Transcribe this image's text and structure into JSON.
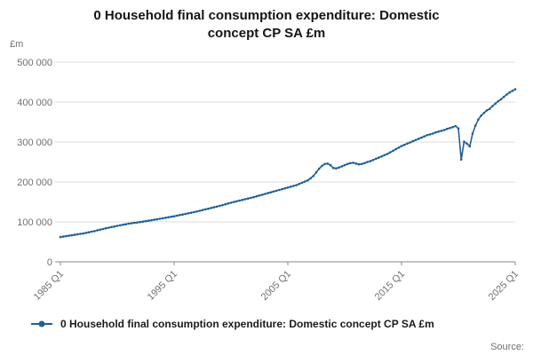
{
  "title": "0 Household final consumption expenditure: Domestic concept CP SA £m",
  "source_label": "Source:",
  "y_axis": {
    "unit_label": "£m",
    "tick_labels": [
      "0",
      "100 000",
      "200 000",
      "300 000",
      "400 000",
      "500 000"
    ],
    "min": 0,
    "max": 500000
  },
  "x_axis": {
    "tick_labels": [
      "1985 Q1",
      "1995 Q1",
      "2005 Q1",
      "2015 Q1",
      "2025 Q1"
    ],
    "tick_positions": [
      0,
      40,
      80,
      120,
      160
    ]
  },
  "legend": {
    "label": "0 Household final consumption expenditure: Domestic concept CP SA £m",
    "color": "#206095"
  },
  "chart_data": {
    "type": "line",
    "title": "0 Household final consumption expenditure: Domestic concept CP SA £m",
    "xlabel": "",
    "ylabel": "£m",
    "ylim": [
      0,
      500000
    ],
    "grid": true,
    "legend_position": "bottom",
    "x_start": "1985 Q1",
    "x_end": "2025 Q1",
    "frequency": "quarterly",
    "series": [
      {
        "name": "0 Household final consumption expenditure: Domestic concept CP SA £m",
        "color": "#206095",
        "marker": "circle",
        "values": [
          62000,
          63100,
          64300,
          65400,
          66500,
          67600,
          68800,
          69900,
          71000,
          72500,
          74000,
          75500,
          77000,
          78800,
          80500,
          82300,
          84000,
          85500,
          87000,
          88500,
          90000,
          91400,
          92800,
          94100,
          95500,
          96500,
          97500,
          98500,
          99500,
          100600,
          101700,
          102900,
          104000,
          105300,
          106500,
          107800,
          109000,
          110300,
          111500,
          112800,
          114000,
          115500,
          117000,
          118500,
          120000,
          121500,
          123000,
          124500,
          126000,
          127800,
          129500,
          131300,
          133000,
          134800,
          136500,
          138300,
          140000,
          142000,
          144000,
          146000,
          148000,
          149800,
          151500,
          153300,
          155000,
          156800,
          158500,
          160300,
          162000,
          164000,
          166000,
          168000,
          170000,
          172000,
          174000,
          176000,
          178000,
          180000,
          182000,
          184000,
          186000,
          188000,
          190000,
          192000,
          195000,
          198000,
          201000,
          204000,
          209000,
          215000,
          224000,
          233000,
          240000,
          245000,
          246000,
          242000,
          235000,
          234000,
          236000,
          239000,
          242000,
          245000,
          247000,
          248000,
          246000,
          244000,
          245000,
          247000,
          250000,
          252000,
          255000,
          258000,
          261000,
          264000,
          267000,
          270000,
          274000,
          278000,
          282000,
          286000,
          290000,
          293000,
          296000,
          299000,
          302000,
          305000,
          308000,
          311000,
          314000,
          317000,
          319000,
          321000,
          324000,
          326000,
          328000,
          330000,
          333000,
          335000,
          337000,
          340000,
          334000,
          256000,
          301000,
          296000,
          289000,
          321000,
          341000,
          356000,
          366000,
          373000,
          379000,
          383000,
          390000,
          396000,
          402000,
          407000,
          413000,
          419000,
          424000,
          428000,
          432000
        ]
      }
    ]
  }
}
